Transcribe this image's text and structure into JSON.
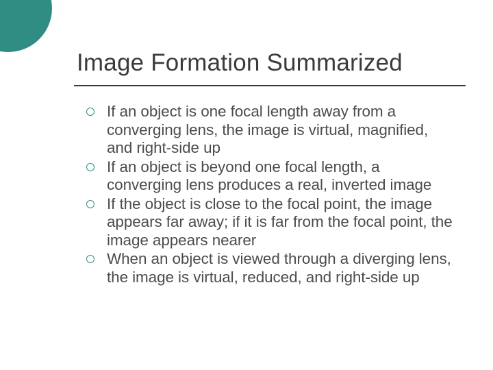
{
  "accent_color": "#2f8d83",
  "text_color": "#4c4c4c",
  "title_color": "#3b3b3b",
  "underline_color": "#3b3b3b",
  "background_color": "#ffffff",
  "title_font_family": "Arial",
  "body_font_family": "Verdana",
  "title_fontsize": 35,
  "body_fontsize": 22.5,
  "title": "Image Formation Summarized",
  "bullets": [
    "If an object is one focal length away from a converging lens, the image is virtual, magnified, and right-side up",
    "If an object is beyond one focal length, a converging lens produces a real, inverted image",
    "If the object is close to the focal point, the image appears far away; if it is far from the focal point, the image appears nearer",
    "When an object is viewed through a diverging lens, the image is virtual, reduced, and right-side up"
  ]
}
